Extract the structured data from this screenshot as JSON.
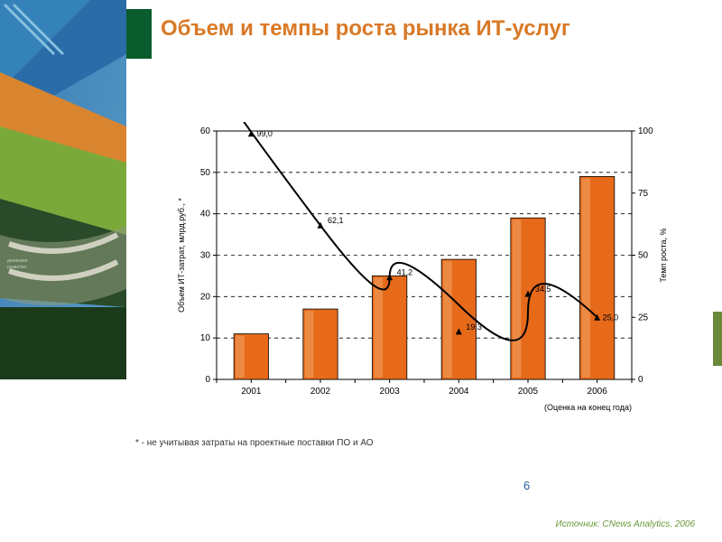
{
  "title": "Объем и темпы роста рынка ИТ-услуг",
  "accent_color": "#d97926",
  "green_block_color": "#0a5c2e",
  "right_accent_color": "#6a8a3a",
  "page_number": "6",
  "footnote": "* - не учитывая затраты на проектные поставки ПО и АО",
  "source": "Источник: CNews Analytics, 2006",
  "chart": {
    "type": "combo-bar-line",
    "categories": [
      "2001",
      "2002",
      "2003",
      "2004",
      "2005",
      "2006"
    ],
    "bar_values": [
      11,
      17,
      25,
      29,
      39,
      49
    ],
    "bar_fill": "#e66a1a",
    "bar_highlight": "#f0a060",
    "bar_border": "#000000",
    "bar_width": 0.5,
    "y_left": {
      "label": "Объем ИТ-затрат, млрд.руб., *",
      "min": 0,
      "max": 60,
      "step": 10,
      "fontsize": 9
    },
    "y_right": {
      "label": "Темп роста, %",
      "min": 0,
      "max": 100,
      "step": 25,
      "fontsize": 9
    },
    "line_values": [
      99.0,
      62.1,
      41.2,
      19.3,
      34.5,
      25.0
    ],
    "line_labels": [
      "99,0",
      "62,1",
      "41,2",
      "19,3",
      "34,5",
      "25,0"
    ],
    "line_color": "#000000",
    "line_width": 2,
    "marker": "triangle-up",
    "marker_size": 7,
    "grid_color": "#000000",
    "grid_dash": "4,4",
    "background": "#ffffff",
    "x_caption": "(Оценка на конец года)",
    "label_fontsize": 9,
    "tick_fontsize": 10
  }
}
